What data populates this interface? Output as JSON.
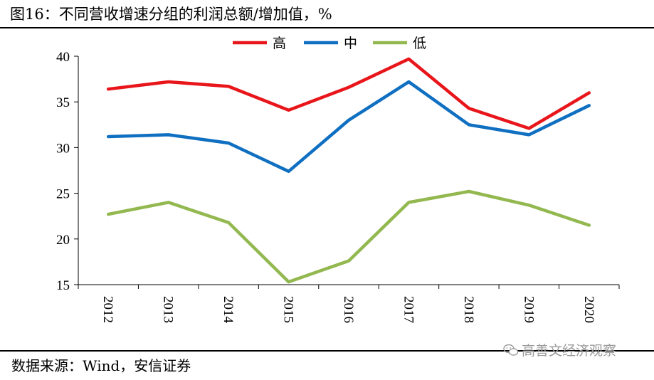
{
  "title": "图16：不同营收增速分组的利润总额/增加值，%",
  "source": "数据来源：Wind，安信证券",
  "watermark": "高善文经济观察",
  "chart_data": {
    "type": "line",
    "title": "图16：不同营收增速分组的利润总额/增加值，%",
    "xlabel": "",
    "ylabel": "",
    "ylim": [
      15,
      40
    ],
    "yticks": [
      15,
      20,
      25,
      30,
      35,
      40
    ],
    "categories": [
      "2012",
      "2013",
      "2014",
      "2015",
      "2016",
      "2017",
      "2018",
      "2019",
      "2020"
    ],
    "legend_position": "top",
    "series": [
      {
        "name": "高",
        "color": "#e8161b",
        "values": [
          36.4,
          37.2,
          36.7,
          34.1,
          36.6,
          39.7,
          34.3,
          32.1,
          36.0
        ]
      },
      {
        "name": "中",
        "color": "#0f6fc1",
        "values": [
          31.2,
          31.4,
          30.5,
          27.4,
          33.0,
          37.2,
          32.5,
          31.4,
          34.6
        ]
      },
      {
        "name": "低",
        "color": "#93b850",
        "values": [
          22.7,
          24.0,
          21.8,
          15.3,
          17.6,
          24.0,
          25.2,
          23.7,
          21.5
        ]
      }
    ]
  }
}
